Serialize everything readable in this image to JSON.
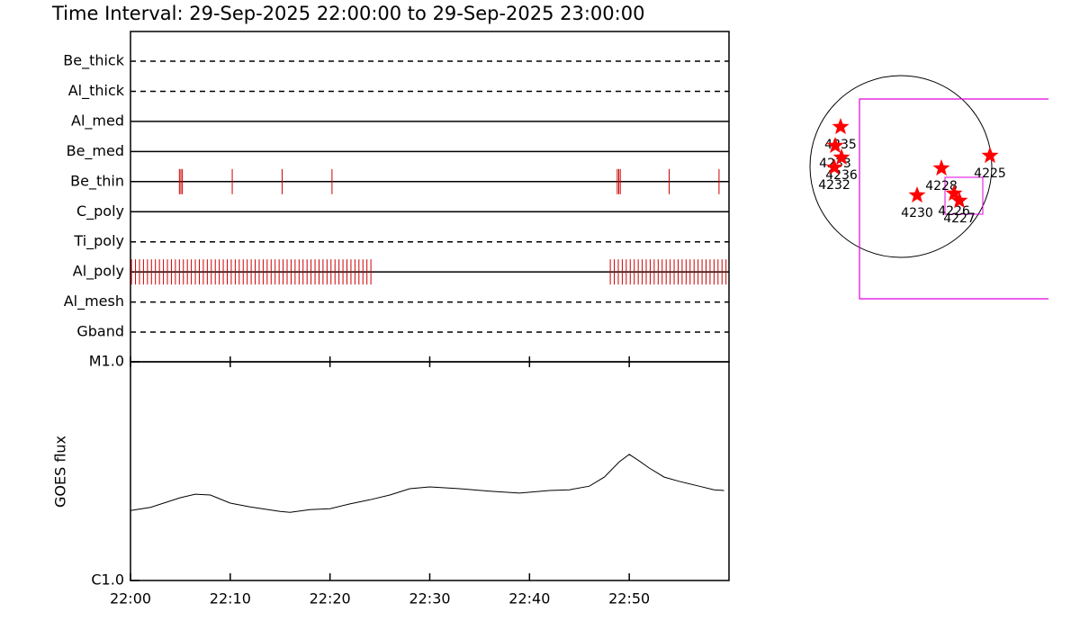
{
  "chart_data": [
    {
      "type": "timeline",
      "title": "Time Interval: 29-Sep-2025 22:00:00 to 29-Sep-2025 23:00:00",
      "xlim": [
        0,
        60
      ],
      "color": "#cc0000",
      "rows": [
        {
          "name": "Be_thick",
          "style": "dashed",
          "times": []
        },
        {
          "name": "Al_thick",
          "style": "dashed",
          "times": []
        },
        {
          "name": "Al_med",
          "style": "solid",
          "times": []
        },
        {
          "name": "Be_med",
          "style": "solid",
          "times": []
        },
        {
          "name": "Be_thin",
          "style": "solid",
          "times": [
            4.9,
            5.05,
            5.2,
            10.2,
            15.2,
            20.2,
            48.8,
            48.95,
            49.1,
            54.0,
            59.0
          ]
        },
        {
          "name": "C_poly",
          "style": "solid",
          "times": []
        },
        {
          "name": "Ti_poly",
          "style": "dashed",
          "times": []
        },
        {
          "name": "Al_poly",
          "style": "solid",
          "times": [
            0.1,
            0.5,
            0.9,
            1.3,
            1.7,
            2.1,
            2.5,
            2.9,
            3.3,
            3.7,
            4.1,
            4.5,
            4.9,
            5.3,
            5.7,
            6.1,
            6.5,
            6.9,
            7.3,
            7.7,
            8.1,
            8.5,
            8.9,
            9.3,
            9.7,
            10.1,
            10.5,
            10.9,
            11.3,
            11.7,
            12.1,
            12.5,
            12.9,
            13.3,
            13.7,
            14.1,
            14.5,
            14.9,
            15.3,
            15.7,
            16.1,
            16.5,
            16.9,
            17.3,
            17.7,
            18.1,
            18.5,
            18.9,
            19.3,
            19.7,
            20.1,
            20.5,
            20.9,
            21.3,
            21.7,
            22.1,
            22.5,
            22.9,
            23.3,
            23.7,
            24.1,
            48.1,
            48.5,
            48.9,
            49.3,
            49.7,
            50.1,
            50.5,
            50.9,
            51.3,
            51.7,
            52.1,
            52.5,
            52.9,
            53.3,
            53.7,
            54.1,
            54.5,
            54.9,
            55.3,
            55.7,
            56.1,
            56.5,
            56.9,
            57.3,
            57.7,
            58.1,
            58.5,
            58.9,
            59.3,
            59.7
          ]
        },
        {
          "name": "Al_mesh",
          "style": "dashed",
          "times": []
        },
        {
          "name": "Gband",
          "style": "dashed",
          "times": []
        }
      ]
    },
    {
      "type": "line",
      "ylabel": "GOES flux",
      "log_y": true,
      "color": "#000000",
      "xlim": [
        0,
        60
      ],
      "xticks": [
        {
          "value": 0,
          "label": "22:00"
        },
        {
          "value": 10,
          "label": "22:10"
        },
        {
          "value": 20,
          "label": "22:20"
        },
        {
          "value": 30,
          "label": "22:30"
        },
        {
          "value": 40,
          "label": "22:40"
        },
        {
          "value": 50,
          "label": "22:50"
        }
      ],
      "ylim": [
        1e-06,
        1e-05
      ],
      "yticks": [
        {
          "value": 1e-06,
          "label": "C1.0"
        },
        {
          "value": 1e-05,
          "label": "M1.0"
        }
      ],
      "x": [
        0,
        2,
        5,
        6.5,
        8,
        10,
        12,
        15,
        16,
        18,
        20,
        22,
        24,
        26,
        28,
        30,
        33,
        36,
        39,
        42,
        44,
        46,
        47.5,
        49,
        50,
        51,
        52,
        53.5,
        55,
        57,
        58.5,
        59.5
      ],
      "values": [
        2.09e-06,
        2.16e-06,
        2.39e-06,
        2.48e-06,
        2.46e-06,
        2.26e-06,
        2.17e-06,
        2.07e-06,
        2.05e-06,
        2.11e-06,
        2.13e-06,
        2.24e-06,
        2.34e-06,
        2.46e-06,
        2.63e-06,
        2.68e-06,
        2.63e-06,
        2.56e-06,
        2.51e-06,
        2.58e-06,
        2.6e-06,
        2.7e-06,
        2.97e-06,
        3.49e-06,
        3.77e-06,
        3.52e-06,
        3.27e-06,
        2.97e-06,
        2.84e-06,
        2.7e-06,
        2.6e-06,
        2.58e-06
      ]
    },
    {
      "type": "scatter",
      "color": "#ff0000",
      "labels": [
        "4235",
        "4233",
        "4236",
        "4232",
        "4228",
        "4225",
        "4230",
        "4226",
        "4227"
      ],
      "x": [
        -637,
        -694,
        -627,
        -703,
        428,
        941,
        171,
        561,
        618
      ],
      "y": [
        418,
        219,
        95,
        -10,
        -19,
        114,
        -304,
        -285,
        -361
      ]
    }
  ]
}
